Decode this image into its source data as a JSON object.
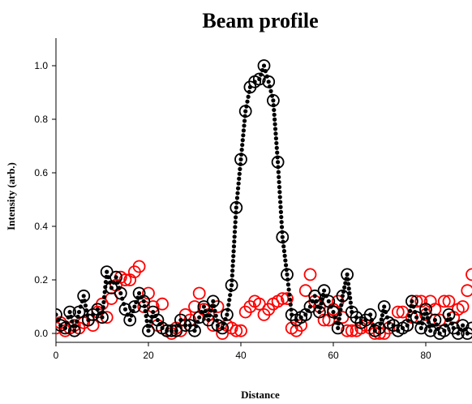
{
  "chart_data": {
    "type": "scatter",
    "title": "Beam profile",
    "xlabel": "Distance",
    "ylabel": "Intensity (arb.)",
    "xlim": [
      0,
      90
    ],
    "ylim": [
      -0.05,
      1.1
    ],
    "xticks": [
      0,
      20,
      40,
      60,
      80
    ],
    "yticks": [
      0.0,
      0.2,
      0.4,
      0.6,
      0.8,
      1.0
    ],
    "ytick_labels": [
      "0.0",
      "0.2",
      "0.4",
      "0.6",
      "0.8",
      "1.0"
    ],
    "grid": false,
    "series": [
      {
        "color": "#000000",
        "marker": "open-circle",
        "fit_line": "dotted",
        "x": [
          0,
          1,
          2,
          3,
          4,
          5,
          6,
          7,
          8,
          9,
          10,
          11,
          12,
          13,
          14,
          15,
          16,
          17,
          18,
          19,
          20,
          21,
          22,
          23,
          24,
          25,
          26,
          27,
          28,
          29,
          30,
          31,
          32,
          33,
          34,
          35,
          36,
          37,
          38,
          39,
          40,
          41,
          42,
          43,
          44,
          45,
          46,
          47,
          48,
          49,
          50,
          51,
          52,
          53,
          54,
          55,
          56,
          57,
          58,
          59,
          60,
          61,
          62,
          63,
          64,
          65,
          66,
          67,
          68,
          69,
          70,
          71,
          72,
          73,
          74,
          75,
          76,
          77,
          78,
          79,
          80,
          81,
          82,
          83,
          84,
          85,
          86,
          87,
          88,
          89,
          90
        ],
        "y": [
          0.07,
          0.03,
          0.02,
          0.08,
          0.01,
          0.08,
          0.14,
          0.05,
          0.07,
          0.09,
          0.06,
          0.23,
          0.17,
          0.21,
          0.15,
          0.09,
          0.05,
          0.1,
          0.15,
          0.12,
          0.01,
          0.08,
          0.05,
          0.02,
          0.01,
          0.01,
          0.01,
          0.05,
          0.03,
          0.03,
          0.01,
          0.06,
          0.1,
          0.05,
          0.12,
          0.03,
          0.02,
          0.07,
          0.18,
          0.47,
          0.65,
          0.83,
          0.92,
          0.94,
          0.95,
          1.0,
          0.94,
          0.87,
          0.64,
          0.36,
          0.22,
          0.07,
          0.05,
          0.06,
          0.07,
          0.1,
          0.14,
          0.08,
          0.16,
          0.12,
          0.08,
          0.02,
          0.14,
          0.22,
          0.08,
          0.06,
          0.04,
          0.05,
          0.07,
          0.01,
          0.02,
          0.1,
          0.04,
          0.03,
          0.01,
          0.02,
          0.03,
          0.12,
          0.06,
          0.02,
          0.09,
          0.01,
          0.05,
          0.0,
          0.01,
          0.07,
          0.02,
          0.0,
          0.03,
          0.0,
          0.02
        ]
      },
      {
        "color": "#ff0000",
        "marker": "open-circle",
        "x": [
          0,
          1,
          2,
          3,
          4,
          5,
          6,
          7,
          8,
          9,
          10,
          11,
          12,
          13,
          14,
          15,
          16,
          17,
          18,
          19,
          20,
          21,
          22,
          23,
          24,
          25,
          26,
          27,
          28,
          29,
          30,
          31,
          32,
          33,
          34,
          35,
          36,
          37,
          38,
          39,
          40,
          41,
          42,
          43,
          44,
          45,
          46,
          47,
          48,
          49,
          50,
          51,
          52,
          53,
          54,
          55,
          56,
          57,
          58,
          59,
          60,
          61,
          62,
          63,
          64,
          65,
          66,
          67,
          68,
          69,
          70,
          71,
          72,
          73,
          74,
          75,
          76,
          77,
          78,
          79,
          80,
          81,
          82,
          83,
          84,
          85,
          86,
          87,
          88,
          89,
          90
        ],
        "y": [
          0.02,
          0.04,
          0.01,
          0.02,
          0.03,
          0.02,
          0.04,
          0.05,
          0.03,
          0.08,
          0.11,
          0.06,
          0.13,
          0.18,
          0.21,
          0.2,
          0.2,
          0.23,
          0.25,
          0.1,
          0.15,
          0.1,
          0.03,
          0.11,
          0.01,
          0.0,
          0.02,
          0.01,
          0.07,
          0.05,
          0.1,
          0.15,
          0.09,
          0.07,
          0.03,
          0.1,
          0.0,
          0.03,
          0.02,
          0.01,
          0.01,
          0.08,
          0.1,
          0.12,
          0.11,
          0.07,
          0.09,
          0.11,
          0.12,
          0.13,
          0.13,
          0.02,
          0.01,
          0.03,
          0.16,
          0.22,
          0.12,
          0.1,
          0.05,
          0.05,
          0.09,
          0.12,
          0.06,
          0.01,
          0.01,
          0.01,
          0.02,
          0.03,
          0.02,
          0.0,
          0.0,
          0.0,
          0.02,
          0.03,
          0.08,
          0.08,
          0.03,
          0.06,
          0.12,
          0.12,
          0.07,
          0.12,
          0.09,
          0.05,
          0.12,
          0.12,
          0.06,
          0.09,
          0.1,
          0.16,
          0.22
        ]
      }
    ]
  }
}
